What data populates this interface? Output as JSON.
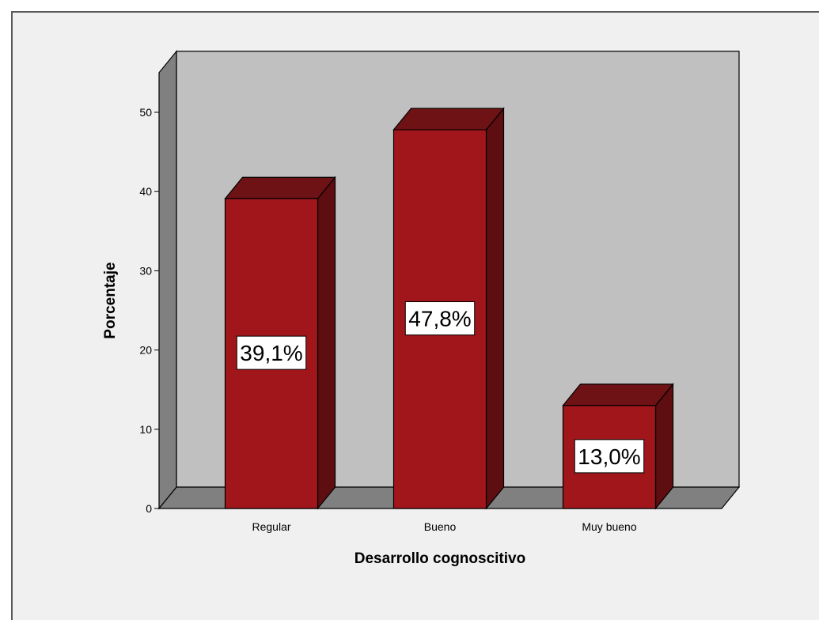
{
  "chart_data": {
    "type": "bar",
    "categories": [
      "Regular",
      "Bueno",
      "Muy bueno"
    ],
    "values": [
      39.1,
      47.8,
      13.0
    ],
    "data_labels": [
      "39,1%",
      "47,8%",
      "13,0%"
    ],
    "title": "",
    "xlabel": "Desarrollo cognoscitivo",
    "ylabel": "Porcentaje",
    "ylim": [
      0,
      55
    ],
    "yticks": [
      "0",
      "10",
      "20",
      "30",
      "40",
      "50"
    ],
    "ytick_values": [
      0,
      10,
      20,
      30,
      40,
      50
    ],
    "three_d": true,
    "grid": false,
    "legend": "none"
  },
  "colors": {
    "bar_front": "#a0161a",
    "bar_side": "#5e0d10",
    "bar_top": "#6e1215",
    "back_wall": "#c0c0c0",
    "side_wall": "#808080",
    "floor": "#808080",
    "background": "#f0f0f0"
  }
}
